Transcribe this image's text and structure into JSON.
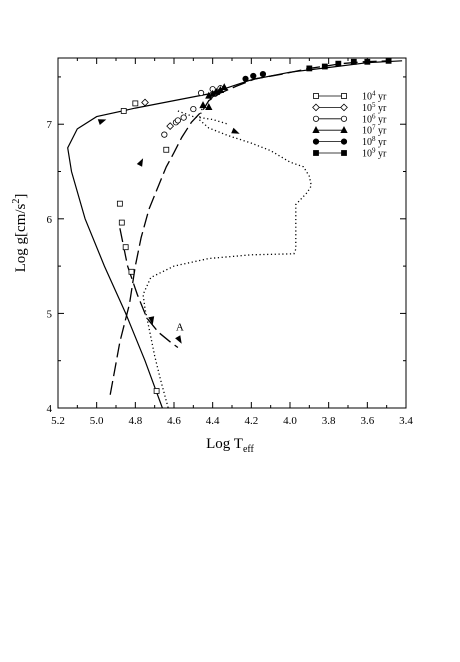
{
  "chart_data": {
    "type": "line",
    "xlabel_main": "Log T",
    "xlabel_sub": "eff",
    "ylabel": "Log g[cm/s",
    "ylabel_sup": "2",
    "ylabel_end": "]",
    "xlim": [
      5.2,
      3.4
    ],
    "ylim": [
      4,
      7.7
    ],
    "x_reversed": true,
    "x_ticks": [
      "5.2",
      "5.0",
      "4.8",
      "4.6",
      "4.4",
      "4.2",
      "4.0",
      "3.8",
      "3.6",
      "3.4"
    ],
    "x_tick_values": [
      5.2,
      5.0,
      4.8,
      4.6,
      4.4,
      4.2,
      4.0,
      3.8,
      3.6,
      3.4
    ],
    "y_ticks": [
      "4",
      "5",
      "6",
      "7"
    ],
    "y_tick_values": [
      4,
      5,
      6,
      7
    ],
    "grid": false,
    "legend_position": "top-right",
    "legend": [
      {
        "base": "10",
        "exp": "4",
        "unit": " yr",
        "marker": "square-open"
      },
      {
        "base": "10",
        "exp": "5",
        "unit": " yr",
        "marker": "diamond-open"
      },
      {
        "base": "10",
        "exp": "6",
        "unit": " yr",
        "marker": "circle-open"
      },
      {
        "base": "10",
        "exp": "7",
        "unit": " yr",
        "marker": "triangle-filled"
      },
      {
        "base": "10",
        "exp": "8",
        "unit": " yr",
        "marker": "circle-filled"
      },
      {
        "base": "10",
        "exp": "9",
        "unit": " yr",
        "marker": "square-filled"
      }
    ],
    "annotations": [
      {
        "text": "A",
        "x": 4.59,
        "y": 4.82
      }
    ],
    "series": [
      {
        "style": "solid",
        "points": [
          [
            4.66,
            4.0
          ],
          [
            4.75,
            4.5
          ],
          [
            4.85,
            5.0
          ],
          [
            4.96,
            5.5
          ],
          [
            5.06,
            6.0
          ],
          [
            5.13,
            6.5
          ],
          [
            5.15,
            6.75
          ],
          [
            5.1,
            6.95
          ],
          [
            5.0,
            7.08
          ],
          [
            4.8,
            7.17
          ],
          [
            4.6,
            7.25
          ],
          [
            4.42,
            7.32
          ],
          [
            4.2,
            7.47
          ],
          [
            4.0,
            7.55
          ],
          [
            3.8,
            7.6
          ],
          [
            3.6,
            7.65
          ],
          [
            3.42,
            7.67
          ]
        ]
      },
      {
        "style": "long-dash",
        "points": [
          [
            4.93,
            4.14
          ],
          [
            4.88,
            4.7
          ],
          [
            4.83,
            5.1
          ],
          [
            4.8,
            5.5
          ],
          [
            4.77,
            5.8
          ],
          [
            4.73,
            6.1
          ],
          [
            4.68,
            6.35
          ],
          [
            4.64,
            6.55
          ],
          [
            4.6,
            6.7
          ],
          [
            4.56,
            6.86
          ],
          [
            4.51,
            7.02
          ],
          [
            4.45,
            7.15
          ],
          [
            4.42,
            7.25
          ],
          [
            4.36,
            7.33
          ],
          [
            4.28,
            7.4
          ],
          [
            4.18,
            7.48
          ],
          [
            4.04,
            7.53
          ],
          [
            3.9,
            7.59
          ],
          [
            3.8,
            7.62
          ],
          [
            3.74,
            7.64
          ],
          [
            3.62,
            7.66
          ],
          [
            3.48,
            7.67
          ]
        ]
      },
      {
        "style": "long-dash",
        "points": [
          [
            4.88,
            5.9
          ],
          [
            4.84,
            5.5
          ],
          [
            4.79,
            5.2
          ],
          [
            4.74,
            4.95
          ],
          [
            4.68,
            4.8
          ],
          [
            4.62,
            4.7
          ],
          [
            4.58,
            4.64
          ]
        ]
      },
      {
        "style": "dotted",
        "points": [
          [
            4.45,
            7.2
          ],
          [
            4.47,
            7.05
          ],
          [
            4.42,
            6.96
          ],
          [
            4.32,
            6.88
          ],
          [
            4.2,
            6.8
          ],
          [
            4.1,
            6.72
          ],
          [
            4.0,
            6.6
          ],
          [
            3.93,
            6.55
          ],
          [
            3.9,
            6.45
          ],
          [
            3.89,
            6.35
          ],
          [
            3.91,
            6.28
          ],
          [
            3.97,
            6.15
          ],
          [
            3.97,
            5.68
          ],
          [
            3.98,
            5.63
          ],
          [
            4.2,
            5.62
          ],
          [
            4.42,
            5.58
          ],
          [
            4.6,
            5.5
          ],
          [
            4.72,
            5.38
          ],
          [
            4.76,
            5.2
          ],
          [
            4.75,
            5.05
          ],
          [
            4.73,
            4.85
          ],
          [
            4.7,
            4.55
          ],
          [
            4.67,
            4.3
          ],
          [
            4.63,
            4.0
          ]
        ]
      },
      {
        "style": "dotted",
        "points": [
          [
            4.58,
            7.14
          ],
          [
            4.5,
            7.08
          ],
          [
            4.4,
            7.05
          ],
          [
            4.32,
            7.0
          ]
        ]
      }
    ],
    "markers": [
      {
        "type": "square-open",
        "points": [
          [
            4.86,
            7.14
          ],
          [
            4.8,
            7.22
          ],
          [
            4.69,
            4.18
          ],
          [
            4.88,
            6.16
          ],
          [
            4.87,
            5.96
          ],
          [
            4.85,
            5.7
          ],
          [
            4.82,
            5.44
          ],
          [
            4.64,
            6.73
          ]
        ]
      },
      {
        "type": "diamond-open",
        "points": [
          [
            4.75,
            7.23
          ],
          [
            4.41,
            7.3
          ],
          [
            4.62,
            6.98
          ]
        ]
      },
      {
        "type": "circle-open",
        "points": [
          [
            4.65,
            6.89
          ],
          [
            4.59,
            7.02
          ],
          [
            4.55,
            7.07
          ],
          [
            4.5,
            7.16
          ],
          [
            4.46,
            7.33
          ],
          [
            4.4,
            7.37
          ],
          [
            4.36,
            7.38
          ],
          [
            4.58,
            7.04
          ]
        ]
      },
      {
        "type": "triangle-filled",
        "points": [
          [
            4.34,
            7.39
          ],
          [
            4.36,
            7.36
          ],
          [
            4.38,
            7.34
          ],
          [
            4.4,
            7.32
          ],
          [
            4.42,
            7.3
          ],
          [
            4.45,
            7.2
          ],
          [
            4.42,
            7.18
          ]
        ]
      },
      {
        "type": "circle-filled",
        "points": [
          [
            4.23,
            7.48
          ],
          [
            4.19,
            7.51
          ],
          [
            4.14,
            7.53
          ]
        ]
      },
      {
        "type": "square-filled",
        "points": [
          [
            3.9,
            7.59
          ],
          [
            3.82,
            7.61
          ],
          [
            3.75,
            7.64
          ],
          [
            3.67,
            7.66
          ],
          [
            3.6,
            7.66
          ],
          [
            3.49,
            7.67
          ]
        ]
      }
    ],
    "arrows": [
      {
        "from": [
          5.02,
          7.0
        ],
        "to": [
          4.95,
          7.05
        ]
      },
      {
        "from": [
          4.79,
          6.52
        ],
        "to": [
          4.76,
          6.64
        ]
      },
      {
        "from": [
          4.73,
          5.1
        ],
        "to": [
          4.71,
          4.88
        ]
      },
      {
        "from": [
          4.33,
          6.96
        ],
        "to": [
          4.26,
          6.9
        ]
      },
      {
        "from": [
          4.58,
          4.75
        ],
        "to": [
          4.56,
          4.68
        ]
      }
    ]
  }
}
